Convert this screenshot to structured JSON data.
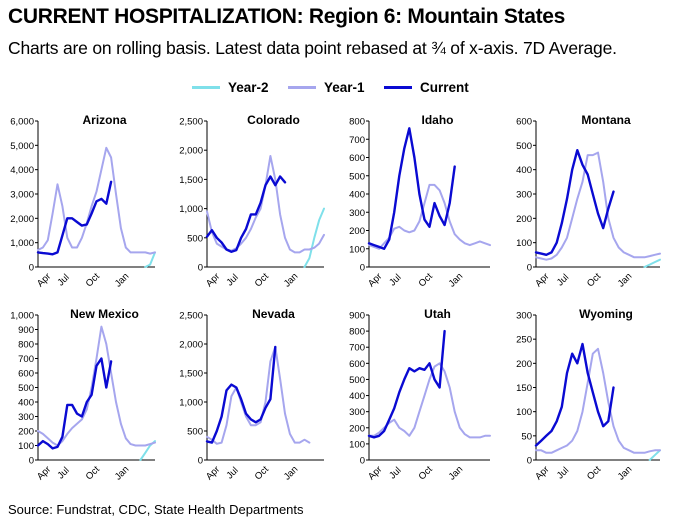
{
  "header": {
    "title": "CURRENT HOSPITALIZATION:  Region 6: Mountain States",
    "subtitle": "Charts are on rolling basis. Latest data point rebased at ¾ of x-axis. 7D Average."
  },
  "legend": {
    "items": [
      {
        "label": "Year-2",
        "color": "#7fe0ea"
      },
      {
        "label": "Year-1",
        "color": "#a6a6ee"
      },
      {
        "label": "Current",
        "color": "#0a0ad2"
      }
    ]
  },
  "footer": {
    "source": "Source: Fundstrat, CDC, State Health Departments"
  },
  "chart_data": [
    {
      "type": "line",
      "title": "Arizona",
      "ylim": [
        0,
        6000
      ],
      "yticks": [
        "0",
        "1,000",
        "2,000",
        "3,000",
        "4,000",
        "5,000",
        "6,000"
      ],
      "xticks": [
        "Apr",
        "Jul",
        "Oct",
        "Jan"
      ],
      "x": [
        0,
        0.5,
        1,
        1.5,
        2,
        2.5,
        3,
        3.5,
        4,
        4.5,
        5,
        5.5,
        6,
        6.5,
        7,
        7.5,
        8,
        8.5,
        9,
        9.5,
        10,
        10.5,
        11,
        11.5,
        12
      ],
      "series": [
        {
          "name": "Year-2",
          "values": [
            null,
            null,
            null,
            null,
            null,
            null,
            null,
            null,
            null,
            null,
            null,
            null,
            null,
            null,
            null,
            null,
            null,
            null,
            null,
            null,
            null,
            null,
            0,
            100,
            600
          ]
        },
        {
          "name": "Year-1",
          "values": [
            700,
            800,
            1100,
            2200,
            3400,
            2500,
            1200,
            800,
            800,
            1200,
            1800,
            2500,
            3100,
            4000,
            4900,
            4500,
            3000,
            1600,
            800,
            600,
            600,
            600,
            600,
            550,
            600
          ]
        },
        {
          "name": "Current",
          "values": [
            600,
            570,
            550,
            520,
            600,
            1300,
            2000,
            2000,
            1850,
            1700,
            1750,
            2200,
            2700,
            2800,
            2600,
            3500,
            null,
            null,
            null,
            null,
            null,
            null,
            null,
            null,
            null
          ]
        }
      ]
    },
    {
      "type": "line",
      "title": "Colorado",
      "ylim": [
        0,
        2500
      ],
      "yticks": [
        "0",
        "500",
        "1,000",
        "1,500",
        "2,000",
        "2,500"
      ],
      "xticks": [
        "Apr",
        "Jul",
        "Oct",
        "Jan"
      ],
      "x": [
        0,
        0.5,
        1,
        1.5,
        2,
        2.5,
        3,
        3.5,
        4,
        4.5,
        5,
        5.5,
        6,
        6.5,
        7,
        7.5,
        8,
        8.5,
        9,
        9.5,
        10,
        10.5,
        11,
        11.5,
        12
      ],
      "series": [
        {
          "name": "Year-2",
          "values": [
            null,
            null,
            null,
            null,
            null,
            null,
            null,
            null,
            null,
            null,
            null,
            null,
            null,
            null,
            null,
            null,
            null,
            null,
            null,
            null,
            0,
            150,
            500,
            800,
            1000
          ]
        },
        {
          "name": "Year-1",
          "values": [
            950,
            600,
            400,
            350,
            300,
            280,
            320,
            400,
            500,
            650,
            850,
            1000,
            1400,
            1900,
            1500,
            900,
            500,
            300,
            250,
            250,
            300,
            300,
            330,
            400,
            550
          ]
        },
        {
          "name": "Current",
          "values": [
            520,
            630,
            500,
            420,
            300,
            260,
            290,
            500,
            650,
            900,
            900,
            1100,
            1400,
            1550,
            1400,
            1550,
            1450,
            null,
            null,
            null,
            null,
            null,
            null,
            null,
            null
          ]
        }
      ]
    },
    {
      "type": "line",
      "title": "Idaho",
      "ylim": [
        0,
        800
      ],
      "yticks": [
        "0",
        "100",
        "200",
        "300",
        "400",
        "500",
        "600",
        "700",
        "800"
      ],
      "xticks": [
        "Apr",
        "Jul",
        "Oct",
        "Jan"
      ],
      "x": [
        0,
        0.5,
        1,
        1.5,
        2,
        2.5,
        3,
        3.5,
        4,
        4.5,
        5,
        5.5,
        6,
        6.5,
        7,
        7.5,
        8,
        8.5,
        9,
        9.5,
        10,
        10.5,
        11,
        11.5,
        12
      ],
      "series": [
        {
          "name": "Year-2",
          "values": [
            null,
            null,
            null,
            null,
            null,
            null,
            null,
            null,
            null,
            null,
            null,
            null,
            null,
            null,
            null,
            null,
            null,
            null,
            null,
            null,
            null,
            null,
            null,
            null,
            null
          ]
        },
        {
          "name": "Year-1",
          "values": [
            120,
            110,
            100,
            130,
            160,
            210,
            220,
            200,
            190,
            200,
            250,
            350,
            450,
            450,
            420,
            350,
            250,
            180,
            150,
            130,
            120,
            130,
            140,
            130,
            120
          ]
        },
        {
          "name": "Current",
          "values": [
            130,
            120,
            110,
            100,
            150,
            300,
            500,
            650,
            760,
            600,
            400,
            260,
            220,
            350,
            280,
            230,
            350,
            550,
            null,
            null,
            null,
            null,
            null,
            null,
            null
          ]
        }
      ]
    },
    {
      "type": "line",
      "title": "Montana",
      "ylim": [
        0,
        600
      ],
      "yticks": [
        "0",
        "100",
        "200",
        "300",
        "400",
        "500",
        "600"
      ],
      "xticks": [
        "Apr",
        "Jul",
        "Oct",
        "Jan"
      ],
      "x": [
        0,
        0.5,
        1,
        1.5,
        2,
        2.5,
        3,
        3.5,
        4,
        4.5,
        5,
        5.5,
        6,
        6.5,
        7,
        7.5,
        8,
        8.5,
        9,
        9.5,
        10,
        10.5,
        11,
        11.5,
        12
      ],
      "series": [
        {
          "name": "Year-2",
          "values": [
            null,
            null,
            null,
            null,
            null,
            null,
            null,
            null,
            null,
            null,
            null,
            null,
            null,
            null,
            null,
            null,
            null,
            null,
            null,
            null,
            null,
            0,
            10,
            20,
            30
          ]
        },
        {
          "name": "Year-1",
          "values": [
            40,
            35,
            30,
            35,
            50,
            80,
            120,
            200,
            280,
            350,
            460,
            460,
            470,
            350,
            200,
            120,
            80,
            60,
            50,
            40,
            40,
            40,
            45,
            50,
            55
          ]
        },
        {
          "name": "Current",
          "values": [
            60,
            55,
            50,
            60,
            100,
            180,
            280,
            400,
            480,
            420,
            380,
            300,
            220,
            160,
            240,
            310,
            null,
            null,
            null,
            null,
            null,
            null,
            null,
            null,
            null
          ]
        }
      ]
    },
    {
      "type": "line",
      "title": "New Mexico",
      "ylim": [
        0,
        1000
      ],
      "yticks": [
        "0",
        "100",
        "200",
        "300",
        "400",
        "500",
        "600",
        "700",
        "800",
        "900",
        "1,000"
      ],
      "xticks": [
        "Apr",
        "Jul",
        "Oct",
        "Jan"
      ],
      "x": [
        0,
        0.5,
        1,
        1.5,
        2,
        2.5,
        3,
        3.5,
        4,
        4.5,
        5,
        5.5,
        6,
        6.5,
        7,
        7.5,
        8,
        8.5,
        9,
        9.5,
        10,
        10.5,
        11,
        11.5,
        12
      ],
      "series": [
        {
          "name": "Year-2",
          "values": [
            null,
            null,
            null,
            null,
            null,
            null,
            null,
            null,
            null,
            null,
            null,
            null,
            null,
            null,
            null,
            null,
            null,
            null,
            null,
            null,
            null,
            0,
            50,
            100,
            130
          ]
        },
        {
          "name": "Year-1",
          "values": [
            200,
            180,
            150,
            120,
            100,
            130,
            180,
            220,
            250,
            280,
            350,
            500,
            700,
            920,
            800,
            600,
            400,
            250,
            150,
            110,
            100,
            100,
            100,
            110,
            120
          ]
        },
        {
          "name": "Current",
          "values": [
            100,
            130,
            110,
            80,
            90,
            160,
            380,
            380,
            320,
            300,
            400,
            450,
            650,
            700,
            500,
            680,
            null,
            null,
            null,
            null,
            null,
            null,
            null,
            null,
            null
          ]
        }
      ]
    },
    {
      "type": "line",
      "title": "Nevada",
      "ylim": [
        0,
        2500
      ],
      "yticks": [
        "0",
        "500",
        "1,000",
        "1,500",
        "2,000",
        "2,500"
      ],
      "xticks": [
        "Apr",
        "Jul",
        "Oct",
        "Jan"
      ],
      "x": [
        0,
        0.5,
        1,
        1.5,
        2,
        2.5,
        3,
        3.5,
        4,
        4.5,
        5,
        5.5,
        6,
        6.5,
        7,
        7.5,
        8,
        8.5,
        9,
        9.5,
        10,
        10.5,
        11,
        11.5,
        12
      ],
      "series": [
        {
          "name": "Year-2",
          "values": [
            null,
            null,
            null,
            null,
            null,
            null,
            null,
            null,
            null,
            null,
            null,
            null,
            null,
            null,
            null,
            null,
            null,
            null,
            null,
            null,
            null,
            null,
            null,
            null,
            null
          ]
        },
        {
          "name": "Year-1",
          "values": [
            400,
            350,
            280,
            300,
            600,
            1100,
            1250,
            1000,
            750,
            600,
            600,
            650,
            1000,
            1700,
            1950,
            1400,
            800,
            450,
            300,
            300,
            350,
            300,
            null,
            null,
            null
          ]
        },
        {
          "name": "Current",
          "values": [
            320,
            300,
            500,
            750,
            1200,
            1300,
            1250,
            1050,
            800,
            700,
            650,
            700,
            900,
            1050,
            1950,
            null,
            null,
            null,
            null,
            null,
            null,
            null,
            null,
            null,
            null
          ]
        }
      ]
    },
    {
      "type": "line",
      "title": "Utah",
      "ylim": [
        0,
        900
      ],
      "yticks": [
        "0",
        "100",
        "200",
        "300",
        "400",
        "500",
        "600",
        "700",
        "800",
        "900"
      ],
      "xticks": [
        "Apr",
        "Jul",
        "Oct",
        "Jan"
      ],
      "x": [
        0,
        0.5,
        1,
        1.5,
        2,
        2.5,
        3,
        3.5,
        4,
        4.5,
        5,
        5.5,
        6,
        6.5,
        7,
        7.5,
        8,
        8.5,
        9,
        9.5,
        10,
        10.5,
        11,
        11.5,
        12
      ],
      "series": [
        {
          "name": "Year-2",
          "values": [
            null,
            null,
            null,
            null,
            null,
            null,
            null,
            null,
            null,
            null,
            null,
            null,
            null,
            null,
            null,
            null,
            null,
            null,
            null,
            null,
            null,
            null,
            null,
            null,
            null
          ]
        },
        {
          "name": "Year-1",
          "values": [
            150,
            150,
            170,
            200,
            230,
            250,
            200,
            180,
            150,
            200,
            300,
            400,
            500,
            580,
            600,
            550,
            450,
            300,
            200,
            160,
            140,
            140,
            140,
            150,
            150
          ]
        },
        {
          "name": "Current",
          "values": [
            150,
            140,
            150,
            180,
            250,
            320,
            420,
            500,
            570,
            550,
            570,
            560,
            600,
            500,
            450,
            800,
            null,
            null,
            null,
            null,
            null,
            null,
            null,
            null,
            null
          ]
        }
      ]
    },
    {
      "type": "line",
      "title": "Wyoming",
      "ylim": [
        0,
        300
      ],
      "yticks": [
        "0",
        "50",
        "100",
        "150",
        "200",
        "250",
        "300"
      ],
      "xticks": [
        "Apr",
        "Jul",
        "Oct",
        "Jan"
      ],
      "x": [
        0,
        0.5,
        1,
        1.5,
        2,
        2.5,
        3,
        3.5,
        4,
        4.5,
        5,
        5.5,
        6,
        6.5,
        7,
        7.5,
        8,
        8.5,
        9,
        9.5,
        10,
        10.5,
        11,
        11.5,
        12
      ],
      "series": [
        {
          "name": "Year-2",
          "values": [
            null,
            null,
            null,
            null,
            null,
            null,
            null,
            null,
            null,
            null,
            null,
            null,
            null,
            null,
            null,
            null,
            null,
            null,
            null,
            null,
            null,
            null,
            0,
            10,
            20
          ]
        },
        {
          "name": "Year-1",
          "values": [
            20,
            20,
            15,
            15,
            20,
            25,
            30,
            40,
            60,
            100,
            160,
            220,
            230,
            180,
            120,
            70,
            40,
            25,
            20,
            15,
            15,
            15,
            18,
            20,
            20
          ]
        },
        {
          "name": "Current",
          "values": [
            30,
            40,
            50,
            60,
            80,
            110,
            180,
            220,
            200,
            240,
            180,
            140,
            100,
            70,
            80,
            150,
            null,
            null,
            null,
            null,
            null,
            null,
            null,
            null,
            null
          ]
        }
      ]
    }
  ]
}
